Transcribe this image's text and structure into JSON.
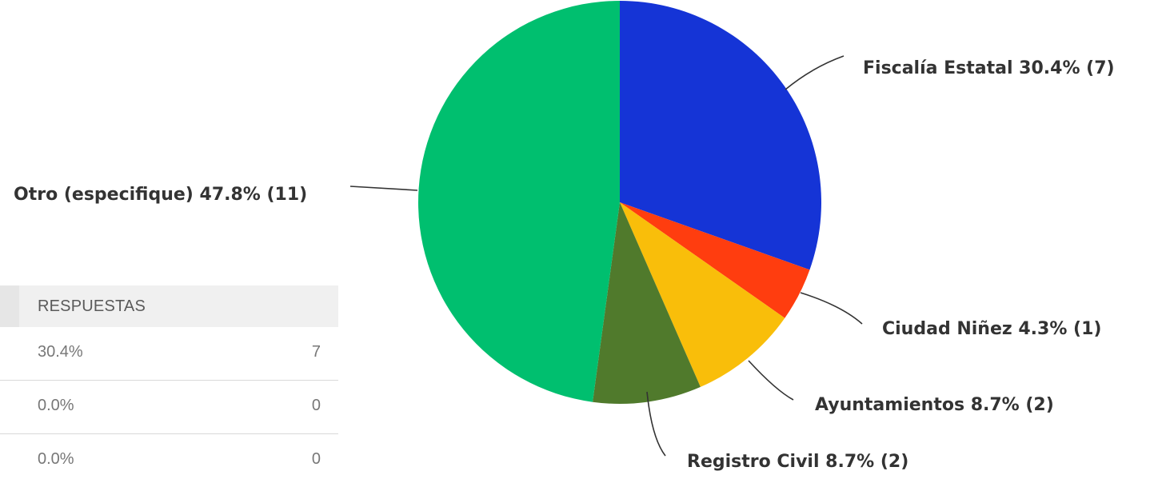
{
  "chart_data": {
    "type": "pie",
    "start_angle": "top, clockwise",
    "slices": [
      {
        "label": "Fiscalía Estatal 30.4% (7)",
        "name": "Fiscalía Estatal",
        "percent": 30.4,
        "count": 7,
        "color": "#1534d6"
      },
      {
        "label": "Ciudad Niñez 4.3% (1)",
        "name": "Ciudad Niñez",
        "percent": 4.3,
        "count": 1,
        "color": "#ff3d0f"
      },
      {
        "label": "Ayuntamientos 8.7% (2)",
        "name": "Ayuntamientos",
        "percent": 8.7,
        "count": 2,
        "color": "#f9be0a"
      },
      {
        "label": "Registro Civil 8.7% (2)",
        "name": "Registro Civil",
        "percent": 8.7,
        "count": 2,
        "color": "#507a2c"
      },
      {
        "label": "Otro (especifique) 47.8% (11)",
        "name": "Otro (especifique)",
        "percent": 47.8,
        "count": 11,
        "color": "#00bf6f"
      }
    ]
  },
  "table": {
    "header": "RESPUESTAS",
    "rows": [
      {
        "percent": "30.4%",
        "count": "7"
      },
      {
        "percent": "0.0%",
        "count": "0"
      },
      {
        "percent": "0.0%",
        "count": "0"
      }
    ]
  }
}
